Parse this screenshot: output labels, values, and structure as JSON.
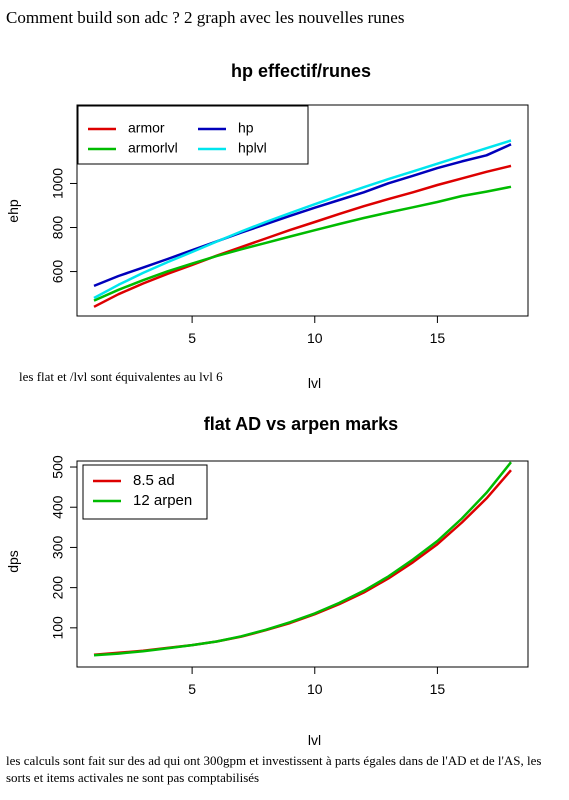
{
  "page": {
    "header": "Comment build son adc ? 2 graph avec les nouvelles runes",
    "note_1": "les flat et /lvl sont équivalentes au lvl 6",
    "note_2": "les calculs sont fait sur des ad qui ont 300gpm et investissent à parts égales dans de l'AD et de l'AS, les sorts et items activales ne sont pas comptabilisés"
  },
  "chart_data": [
    {
      "type": "line",
      "title": "hp effectif/runes",
      "xlabel": "lvl",
      "ylabel": "ehp",
      "xlim": [
        1,
        18
      ],
      "ylim": [
        430,
        1320
      ],
      "xticks": [
        "5",
        "10",
        "15"
      ],
      "yticks": [
        "600",
        "800",
        "1000"
      ],
      "grid": false,
      "legend": "top-left",
      "x": [
        1,
        2,
        3,
        4,
        5,
        6,
        7,
        8,
        9,
        10,
        11,
        12,
        13,
        14,
        15,
        16,
        17,
        18
      ],
      "series": [
        {
          "name": "armor",
          "color": "#dd0000",
          "values": [
            440,
            497,
            546,
            590,
            630,
            672,
            711,
            750,
            789,
            825,
            862,
            897,
            929,
            960,
            993,
            1023,
            1053,
            1080
          ]
        },
        {
          "name": "armorlvl",
          "color": "#00bb00",
          "values": [
            468,
            517,
            561,
            601,
            636,
            670,
            701,
            730,
            759,
            788,
            816,
            843,
            868,
            892,
            916,
            943,
            963,
            985
          ]
        },
        {
          "name": "hp",
          "color": "#0000bb",
          "values": [
            535,
            580,
            618,
            657,
            697,
            737,
            777,
            815,
            853,
            890,
            925,
            960,
            1001,
            1035,
            1070,
            1100,
            1128,
            1178
          ]
        },
        {
          "name": "hplvl",
          "color": "#00e5ee",
          "values": [
            480,
            540,
            594,
            643,
            689,
            736,
            782,
            825,
            866,
            906,
            945,
            983,
            1020,
            1055,
            1090,
            1125,
            1160,
            1195
          ]
        }
      ]
    },
    {
      "type": "line",
      "title": "flat AD vs arpen marks",
      "xlabel": "lvl",
      "ylabel": "dps",
      "xlim": [
        1,
        18
      ],
      "ylim": [
        20,
        510
      ],
      "xticks": [
        "5",
        "10",
        "15"
      ],
      "yticks": [
        "100",
        "200",
        "300",
        "400",
        "500"
      ],
      "grid": false,
      "legend": "top-left",
      "x": [
        1,
        2,
        3,
        4,
        5,
        6,
        7,
        8,
        9,
        10,
        11,
        12,
        13,
        14,
        15,
        16,
        17,
        18
      ],
      "series": [
        {
          "name": "8.5 ad",
          "color": "#dd0000",
          "values": [
            33,
            38,
            43,
            50,
            57,
            66,
            78,
            94,
            112,
            134,
            159,
            188,
            223,
            263,
            308,
            362,
            422,
            492
          ]
        },
        {
          "name": "12 arpen",
          "color": "#00bb00",
          "values": [
            32,
            36,
            42,
            49,
            57,
            66,
            79,
            95,
            114,
            136,
            162,
            192,
            228,
            270,
            316,
            372,
            436,
            512
          ]
        }
      ]
    }
  ]
}
